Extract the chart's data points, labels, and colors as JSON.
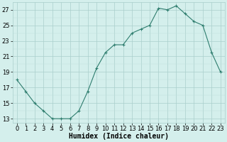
{
  "x": [
    0,
    1,
    2,
    3,
    4,
    5,
    6,
    7,
    8,
    9,
    10,
    11,
    12,
    13,
    14,
    15,
    16,
    17,
    18,
    19,
    20,
    21,
    22,
    23
  ],
  "y": [
    18.0,
    16.5,
    15.0,
    14.0,
    13.0,
    13.0,
    13.0,
    14.0,
    16.5,
    19.5,
    21.5,
    22.5,
    22.5,
    24.0,
    24.5,
    25.0,
    27.2,
    27.0,
    27.5,
    26.5,
    25.5,
    25.0,
    21.5,
    19.0
  ],
  "xlabel": "Humidex (Indice chaleur)",
  "line_color": "#2e7d6e",
  "marker_color": "#2e7d6e",
  "bg_color": "#d4efec",
  "grid_major_color": "#aacfcc",
  "grid_minor_color": "#c0e0dc",
  "ylim": [
    12.5,
    28.0
  ],
  "yticks": [
    13,
    15,
    17,
    19,
    21,
    23,
    25,
    27
  ],
  "xticks": [
    0,
    1,
    2,
    3,
    4,
    5,
    6,
    7,
    8,
    9,
    10,
    11,
    12,
    13,
    14,
    15,
    16,
    17,
    18,
    19,
    20,
    21,
    22,
    23
  ],
  "xlabel_fontsize": 7,
  "tick_fontsize": 6
}
